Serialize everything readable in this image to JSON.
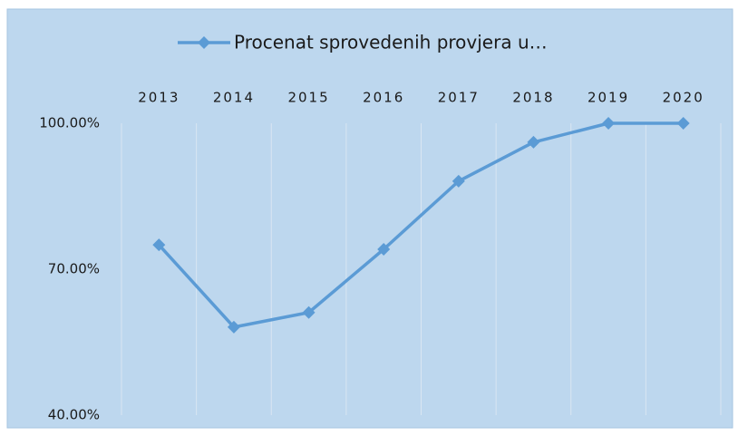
{
  "chart_data": {
    "type": "line",
    "categories": [
      "2013",
      "2014",
      "2015",
      "2016",
      "2017",
      "2018",
      "2019",
      "2020"
    ],
    "series": [
      {
        "name": "Procenat sprovedenih provjera u…",
        "color": "#5b9bd5",
        "values": [
          75.0,
          58.1,
          61.1,
          74.1,
          88.1,
          96.1,
          100,
          100
        ]
      }
    ],
    "ylim": [
      40,
      100
    ],
    "yticks": [
      {
        "value": 40,
        "label": "40.00%"
      },
      {
        "value": 70,
        "label": "70.00%"
      },
      {
        "value": 100,
        "label": "100.00%"
      }
    ],
    "grid": false,
    "legend": "top"
  }
}
